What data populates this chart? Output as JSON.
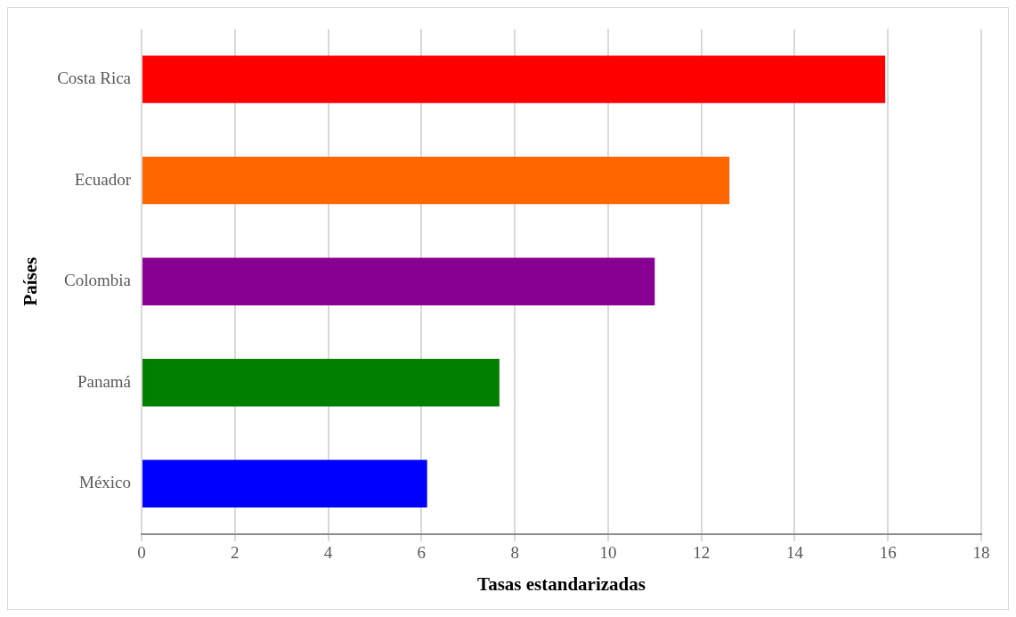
{
  "chart_data": {
    "type": "bar",
    "orientation": "horizontal",
    "xlabel": "Tasas estandarizadas",
    "ylabel": "Países",
    "categories": [
      "Costa Rica",
      "Ecuador",
      "Colombia",
      "Panamá",
      "México"
    ],
    "values": [
      15.94,
      12.6,
      11.0,
      7.67,
      6.12
    ],
    "colors": [
      "#ff0000",
      "#ff6600",
      "#880092",
      "#007f00",
      "#0000ff"
    ],
    "xlim": [
      0,
      18
    ],
    "xticks": [
      0,
      2,
      4,
      6,
      8,
      10,
      12,
      14,
      16,
      18
    ],
    "grid": "x",
    "legend": false
  }
}
